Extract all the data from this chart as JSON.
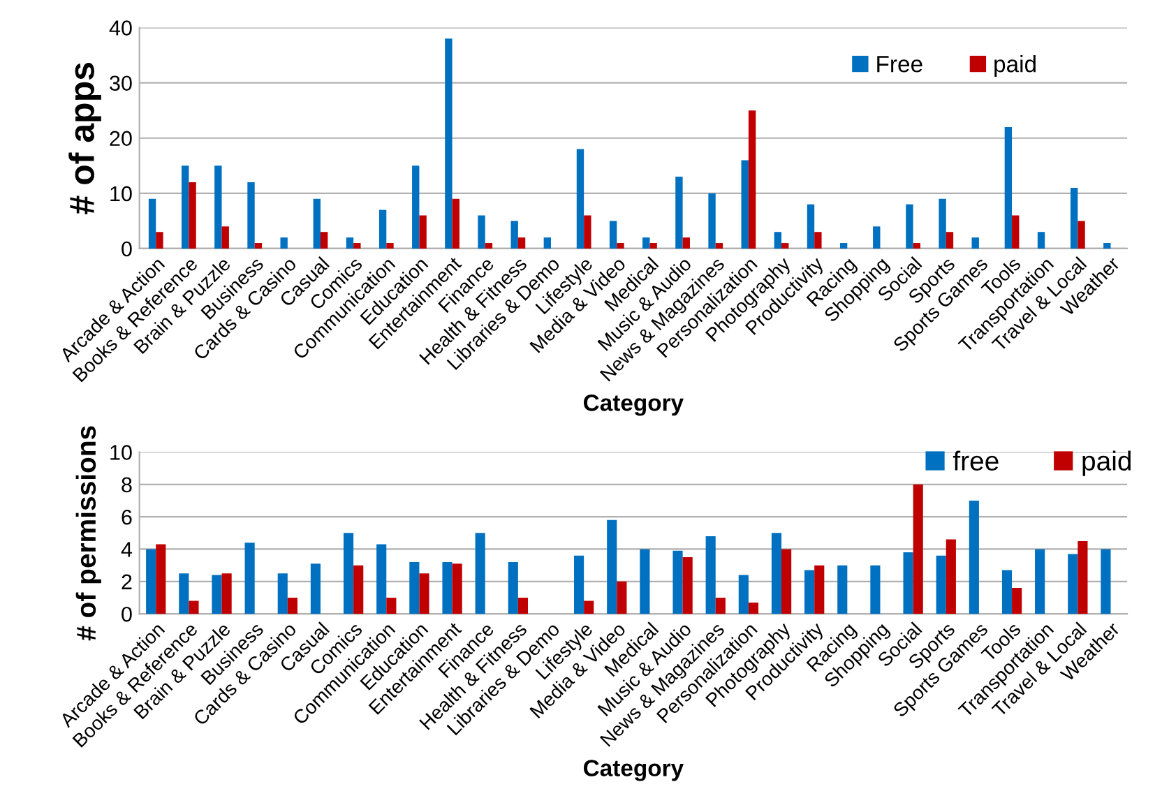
{
  "chart_data": [
    {
      "type": "bar",
      "xlabel": "Category",
      "ylabel": "# of apps",
      "categories": [
        "Arcade & Action",
        "Books & Reference",
        "Brain & Puzzle",
        "Business",
        "Cards & Casino",
        "Casual",
        "Comics",
        "Communication",
        "Education",
        "Entertainment",
        "Finance",
        "Health & Fitness",
        "Libraries & Demo",
        "Lifestyle",
        "Media & Video",
        "Medical",
        "Music & Audio",
        "News & Magazines",
        "Personalization",
        "Photography",
        "Productivity",
        "Racing",
        "Shopping",
        "Social",
        "Sports",
        "Sports Games",
        "Tools",
        "Transportation",
        "Travel & Local",
        "Weather"
      ],
      "series": [
        {
          "name": "Free",
          "color": "#0070c0",
          "values": [
            9,
            15,
            15,
            12,
            2,
            9,
            2,
            7,
            15,
            38,
            6,
            5,
            2,
            18,
            5,
            2,
            13,
            10,
            16,
            3,
            8,
            1,
            4,
            8,
            9,
            2,
            22,
            3,
            11,
            1
          ]
        },
        {
          "name": "paid",
          "color": "#c00000",
          "values": [
            3,
            12,
            4,
            1,
            null,
            3,
            1,
            1,
            6,
            9,
            1,
            2,
            null,
            6,
            1,
            1,
            2,
            1,
            25,
            1,
            3,
            null,
            null,
            1,
            3,
            null,
            6,
            null,
            5,
            null
          ]
        }
      ],
      "ylim": [
        0,
        40
      ],
      "yticks": [
        0,
        10,
        20,
        30,
        40
      ],
      "grid": "y",
      "legend": "top right"
    },
    {
      "type": "bar",
      "xlabel": "Category",
      "ylabel": "# of permissions",
      "categories": [
        "Arcade & Action",
        "Books & Reference",
        "Brain & Puzzle",
        "Business",
        "Cards & Casino",
        "Casual",
        "Comics",
        "Communication",
        "Education",
        "Entertainment",
        "Finance",
        "Health & Fitness",
        "Libraries & Demo",
        "Lifestyle",
        "Media & Video",
        "Medical",
        "Music & Audio",
        "News & Magazines",
        "Personalization",
        "Photography",
        "Productivity",
        "Racing",
        "Shopping",
        "Social",
        "Sports",
        "Sports Games",
        "Tools",
        "Transportation",
        "Travel & Local",
        "Weather"
      ],
      "series": [
        {
          "name": "free",
          "color": "#0070c0",
          "values": [
            4.0,
            2.5,
            2.4,
            4.4,
            2.5,
            3.1,
            5.0,
            4.3,
            3.2,
            3.2,
            5.0,
            3.2,
            null,
            3.6,
            5.8,
            4.0,
            3.9,
            4.8,
            2.4,
            5.0,
            2.7,
            3.0,
            3.0,
            3.8,
            3.6,
            7.0,
            2.7,
            4.0,
            3.7,
            4.0
          ]
        },
        {
          "name": "paid",
          "color": "#c00000",
          "values": [
            4.3,
            0.8,
            2.5,
            null,
            1.0,
            null,
            3.0,
            1.0,
            2.5,
            3.1,
            null,
            1.0,
            null,
            0.8,
            2.0,
            null,
            3.5,
            1.0,
            0.7,
            4.0,
            3.0,
            null,
            null,
            8.0,
            4.6,
            null,
            1.6,
            null,
            4.5,
            null
          ]
        }
      ],
      "ylim": [
        0,
        10
      ],
      "yticks": [
        0,
        2,
        4,
        6,
        8,
        10
      ],
      "grid": "y",
      "legend": "top right"
    }
  ]
}
